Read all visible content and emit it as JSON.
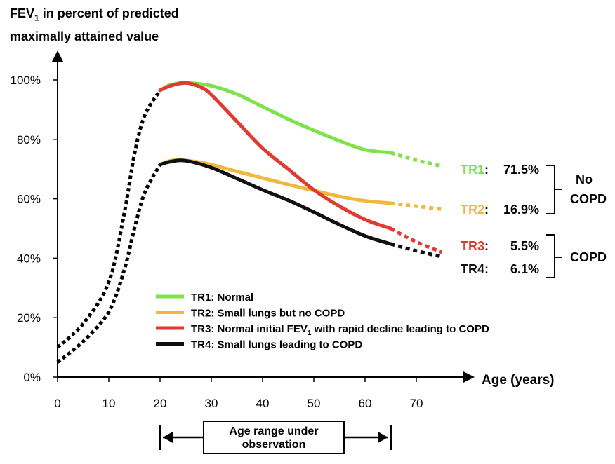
{
  "chart_data": {
    "type": "line",
    "ylabel_line1": "FEV",
    "ylabel_sub": "1",
    "ylabel_line1_rest": " in percent of predicted",
    "ylabel_line2": "maximally attained value",
    "xlabel": "Age (years)",
    "xlim": [
      0,
      75
    ],
    "ylim": [
      0,
      100
    ],
    "x_ticks": [
      0,
      10,
      20,
      30,
      40,
      50,
      60,
      70
    ],
    "y_ticks": [
      0,
      20,
      40,
      60,
      80,
      100
    ],
    "y_tick_labels": [
      "0%",
      "20%",
      "40%",
      "60%",
      "80%",
      "100%"
    ],
    "grid": false,
    "legend_position": "bottom-center",
    "series": [
      {
        "key": "TR1",
        "name": "TR1: Normal",
        "color": "#7ee34a",
        "prevalence": "71.5%",
        "observed": [
          [
            20,
            96.5
          ],
          [
            22,
            98.3
          ],
          [
            25,
            99
          ],
          [
            30,
            98
          ],
          [
            35,
            95.2
          ],
          [
            40,
            91
          ],
          [
            45,
            86.8
          ],
          [
            50,
            83
          ],
          [
            55,
            79.5
          ],
          [
            60,
            76.5
          ],
          [
            65,
            75.5
          ]
        ],
        "extrapolated": [
          [
            65,
            75.5
          ],
          [
            70,
            73
          ],
          [
            75,
            71
          ]
        ]
      },
      {
        "key": "TR2",
        "name": "TR2: Small lungs but no COPD",
        "color": "#f0b93c",
        "prevalence": "16.9%",
        "observed": [
          [
            20,
            71.5
          ],
          [
            22,
            72.8
          ],
          [
            24,
            73
          ],
          [
            27,
            72.5
          ],
          [
            30,
            71.5
          ],
          [
            35,
            69.2
          ],
          [
            40,
            67
          ],
          [
            45,
            64.8
          ],
          [
            50,
            62.8
          ],
          [
            55,
            60.8
          ],
          [
            60,
            59.3
          ],
          [
            65,
            58.5
          ]
        ],
        "extrapolated": [
          [
            65,
            58.5
          ],
          [
            70,
            57.5
          ],
          [
            75,
            56.5
          ]
        ]
      },
      {
        "key": "TR3",
        "name_pre": "TR3: Normal initial FEV",
        "name_sub": "1",
        "name_post": " with rapid decline leading to COPD",
        "color": "#e03a32",
        "prevalence": "5.5%",
        "observed": [
          [
            20,
            96.5
          ],
          [
            22,
            98
          ],
          [
            25,
            99
          ],
          [
            28,
            97.5
          ],
          [
            30,
            95
          ],
          [
            35,
            86
          ],
          [
            40,
            77
          ],
          [
            45,
            70
          ],
          [
            50,
            63
          ],
          [
            55,
            57.5
          ],
          [
            60,
            53
          ],
          [
            65,
            50
          ]
        ],
        "extrapolated": [
          [
            65,
            50
          ],
          [
            70,
            45.5
          ],
          [
            75,
            42
          ]
        ]
      },
      {
        "key": "TR4",
        "name": "TR4: Small lungs leading to COPD",
        "color": "#111111",
        "prevalence": "6.1%",
        "observed": [
          [
            20,
            71.5
          ],
          [
            22,
            72.5
          ],
          [
            25,
            72.8
          ],
          [
            30,
            70.5
          ],
          [
            35,
            66.8
          ],
          [
            40,
            63
          ],
          [
            45,
            59.5
          ],
          [
            50,
            55.5
          ],
          [
            55,
            51.3
          ],
          [
            60,
            47.5
          ],
          [
            65,
            44.8
          ]
        ],
        "extrapolated": [
          [
            65,
            44.8
          ],
          [
            70,
            42.5
          ],
          [
            75,
            40.5
          ]
        ]
      }
    ],
    "childhood_curves": [
      {
        "to": "TR1",
        "points": [
          [
            0,
            10
          ],
          [
            5,
            18
          ],
          [
            10,
            32
          ],
          [
            13,
            55
          ],
          [
            15,
            75
          ],
          [
            17,
            88
          ],
          [
            20,
            96.5
          ]
        ]
      },
      {
        "to": "TR2",
        "points": [
          [
            0,
            5
          ],
          [
            5,
            12
          ],
          [
            10,
            22
          ],
          [
            13,
            36
          ],
          [
            15,
            50
          ],
          [
            17,
            62
          ],
          [
            20,
            71.5
          ]
        ]
      }
    ],
    "group_labels": {
      "no_copd": [
        "No",
        "COPD"
      ],
      "copd": "COPD"
    },
    "observation_label_line1": "Age range under",
    "observation_label_line2": "observation",
    "observation_range": [
      20,
      65
    ]
  }
}
